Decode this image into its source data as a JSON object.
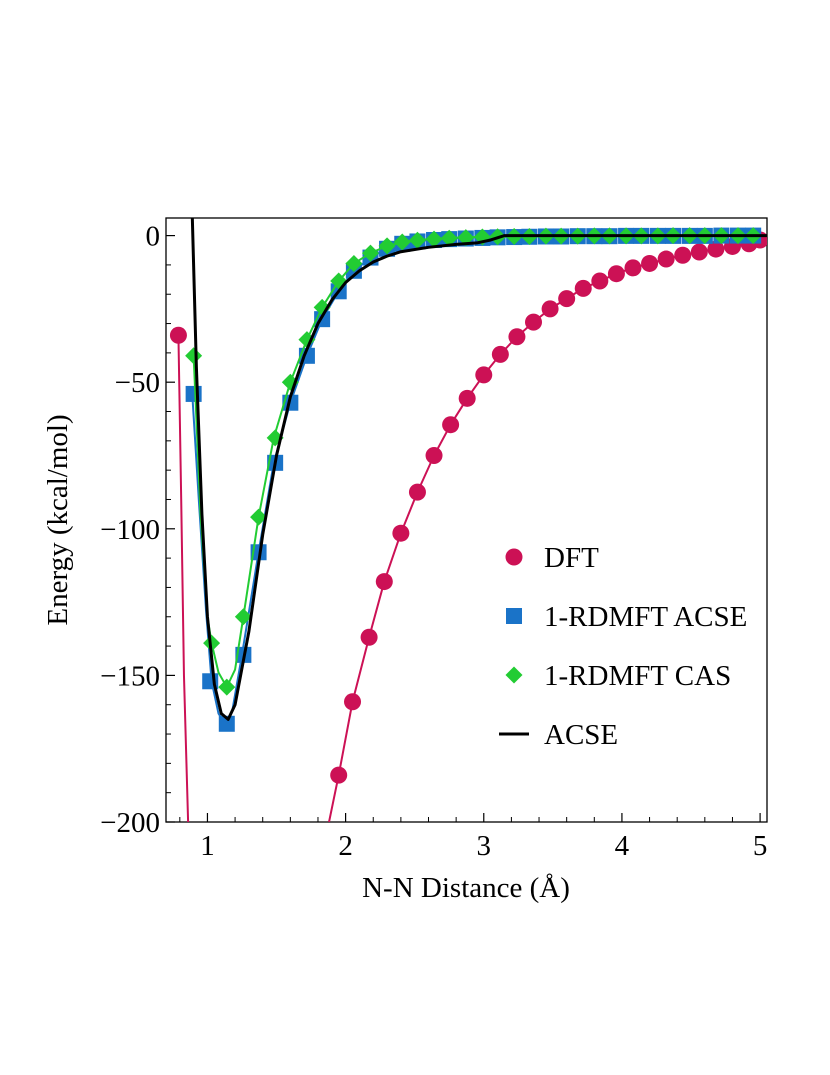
{
  "chart_data": {
    "type": "line",
    "title": "",
    "xlabel": "N-N Distance (Å)",
    "ylabel": "Energy (kcal/mol)",
    "xlim": [
      0.7,
      5.05
    ],
    "ylim": [
      -200,
      6
    ],
    "x_ticks": [
      1,
      2,
      3,
      4,
      5
    ],
    "y_ticks": [
      0,
      -50,
      -100,
      -150,
      -200
    ],
    "x_tick_labels": [
      "1",
      "2",
      "3",
      "4",
      "5"
    ],
    "y_tick_labels": [
      "0",
      "−50",
      "−100",
      "−150",
      "−200"
    ],
    "grid": false,
    "legend_position": "lower-right",
    "series": [
      {
        "name": "DFT",
        "color": "#cc1155",
        "marker": "circle",
        "line": [
          [
            0.79,
            -34
          ],
          [
            0.81,
            -90
          ],
          [
            0.83,
            -150
          ],
          [
            0.86,
            -200
          ]
        ],
        "curve": [
          [
            1.88,
            -200
          ],
          [
            1.95,
            -184
          ],
          [
            2.05,
            -159
          ],
          [
            2.17,
            -137
          ],
          [
            2.28,
            -118
          ],
          [
            2.4,
            -101.5
          ],
          [
            2.52,
            -87.5
          ],
          [
            2.64,
            -75
          ],
          [
            2.76,
            -64.5
          ],
          [
            2.88,
            -55.5
          ],
          [
            3.0,
            -47.5
          ],
          [
            3.12,
            -40.5
          ],
          [
            3.24,
            -34.5
          ],
          [
            3.36,
            -29.5
          ],
          [
            3.48,
            -25
          ],
          [
            3.6,
            -21.5
          ],
          [
            3.72,
            -18
          ],
          [
            3.84,
            -15.5
          ],
          [
            3.96,
            -13
          ],
          [
            4.08,
            -11
          ],
          [
            4.2,
            -9.5
          ],
          [
            4.32,
            -8
          ],
          [
            4.44,
            -6.7
          ],
          [
            4.56,
            -5.6
          ],
          [
            4.68,
            -4.6
          ],
          [
            4.8,
            -3.7
          ],
          [
            4.92,
            -2.8
          ],
          [
            5.04,
            -2
          ]
        ],
        "points": [
          [
            0.79,
            -34
          ],
          [
            1.95,
            -184
          ],
          [
            2.05,
            -159
          ],
          [
            2.17,
            -137
          ],
          [
            2.28,
            -118
          ],
          [
            2.4,
            -101.5
          ],
          [
            2.52,
            -87.5
          ],
          [
            2.64,
            -75
          ],
          [
            2.76,
            -64.5
          ],
          [
            2.88,
            -55.5
          ],
          [
            3.0,
            -47.5
          ],
          [
            3.12,
            -40.5
          ],
          [
            3.24,
            -34.5
          ],
          [
            3.36,
            -29.5
          ],
          [
            3.48,
            -25
          ],
          [
            3.6,
            -21.5
          ],
          [
            3.72,
            -18
          ],
          [
            3.84,
            -15.5
          ],
          [
            3.96,
            -13
          ],
          [
            4.08,
            -11
          ],
          [
            4.2,
            -9.5
          ],
          [
            4.32,
            -8
          ],
          [
            4.44,
            -6.7
          ],
          [
            4.56,
            -5.6
          ],
          [
            4.68,
            -4.6
          ],
          [
            4.8,
            -3.7
          ],
          [
            4.92,
            -2.8
          ],
          [
            5.0,
            -1.5
          ]
        ]
      },
      {
        "name": "1-RDMFT ACSE",
        "color": "#1a73c8",
        "marker": "square",
        "curve": [
          [
            0.89,
            -54
          ],
          [
            0.94,
            -92
          ],
          [
            0.99,
            -128
          ],
          [
            1.03,
            -152
          ],
          [
            1.08,
            -163
          ],
          [
            1.13,
            -166.5
          ],
          [
            1.18,
            -162
          ],
          [
            1.25,
            -143
          ],
          [
            1.37,
            -108
          ],
          [
            1.48,
            -77.5
          ],
          [
            1.6,
            -57
          ],
          [
            1.72,
            -41
          ],
          [
            1.83,
            -28.5
          ],
          [
            1.95,
            -19
          ],
          [
            2.06,
            -12
          ],
          [
            2.18,
            -7.5
          ],
          [
            2.3,
            -4.5
          ],
          [
            2.42,
            -2.8
          ],
          [
            2.6,
            -1.5
          ],
          [
            2.8,
            -0.9
          ],
          [
            3.0,
            -0.5
          ],
          [
            3.5,
            -0.2
          ],
          [
            4.0,
            -0.1
          ],
          [
            5.0,
            0
          ]
        ],
        "points": [
          [
            0.9,
            -54
          ],
          [
            1.02,
            -152
          ],
          [
            1.14,
            -166.5
          ],
          [
            1.26,
            -143
          ],
          [
            1.37,
            -108
          ],
          [
            1.49,
            -77.5
          ],
          [
            1.6,
            -57
          ],
          [
            1.72,
            -41
          ],
          [
            1.83,
            -28.5
          ],
          [
            1.95,
            -19
          ],
          [
            2.06,
            -12
          ],
          [
            2.18,
            -7.5
          ],
          [
            2.3,
            -4.5
          ],
          [
            2.41,
            -2.8
          ],
          [
            2.52,
            -2
          ],
          [
            2.64,
            -1.5
          ],
          [
            2.75,
            -1.2
          ],
          [
            2.87,
            -1
          ],
          [
            2.99,
            -0.8
          ],
          [
            3.1,
            -0.6
          ],
          [
            3.22,
            -0.5
          ],
          [
            3.33,
            -0.4
          ],
          [
            3.45,
            -0.3
          ],
          [
            3.56,
            -0.3
          ],
          [
            3.68,
            -0.2
          ],
          [
            3.8,
            -0.2
          ],
          [
            3.91,
            -0.2
          ],
          [
            4.03,
            -0.1
          ],
          [
            4.14,
            -0.1
          ],
          [
            4.26,
            -0.1
          ],
          [
            4.37,
            -0.1
          ],
          [
            4.49,
            -0.1
          ],
          [
            4.6,
            -0.1
          ],
          [
            4.72,
            0
          ],
          [
            4.84,
            0
          ],
          [
            4.95,
            0
          ]
        ]
      },
      {
        "name": "1-RDMFT CAS",
        "color": "#22cc33",
        "marker": "diamond",
        "curve": [
          [
            0.9,
            -41
          ],
          [
            0.95,
            -95
          ],
          [
            1.0,
            -130
          ],
          [
            1.03,
            -139
          ],
          [
            1.08,
            -149
          ],
          [
            1.14,
            -154
          ],
          [
            1.2,
            -148
          ],
          [
            1.26,
            -130
          ],
          [
            1.37,
            -96
          ],
          [
            1.48,
            -69
          ],
          [
            1.6,
            -50
          ],
          [
            1.72,
            -35.5
          ],
          [
            1.83,
            -24.5
          ],
          [
            1.95,
            -15.5
          ],
          [
            2.06,
            -9.5
          ],
          [
            2.18,
            -6
          ],
          [
            2.3,
            -3.5
          ],
          [
            2.42,
            -2.2
          ],
          [
            2.6,
            -1.2
          ],
          [
            2.8,
            -0.7
          ],
          [
            3.0,
            -0.4
          ],
          [
            3.5,
            -0.2
          ],
          [
            4.0,
            -0.1
          ],
          [
            5.0,
            0
          ]
        ],
        "points": [
          [
            0.9,
            -41
          ],
          [
            1.03,
            -139
          ],
          [
            1.14,
            -154
          ],
          [
            1.26,
            -130
          ],
          [
            1.37,
            -96
          ],
          [
            1.49,
            -69
          ],
          [
            1.6,
            -50
          ],
          [
            1.72,
            -35.5
          ],
          [
            1.83,
            -24.5
          ],
          [
            1.95,
            -15.5
          ],
          [
            2.06,
            -9.5
          ],
          [
            2.18,
            -6
          ],
          [
            2.3,
            -3.5
          ],
          [
            2.41,
            -2.2
          ],
          [
            2.52,
            -1.6
          ],
          [
            2.64,
            -1.2
          ],
          [
            2.75,
            -0.9
          ],
          [
            2.87,
            -0.7
          ],
          [
            2.99,
            -0.5
          ],
          [
            3.1,
            -0.4
          ],
          [
            3.22,
            -0.3
          ],
          [
            3.33,
            -0.3
          ],
          [
            3.45,
            -0.2
          ],
          [
            3.56,
            -0.2
          ],
          [
            3.68,
            -0.2
          ],
          [
            3.8,
            -0.1
          ],
          [
            3.91,
            -0.1
          ],
          [
            4.03,
            -0.1
          ],
          [
            4.14,
            -0.1
          ],
          [
            4.26,
            -0.1
          ],
          [
            4.37,
            0
          ],
          [
            4.49,
            0
          ],
          [
            4.6,
            0
          ],
          [
            4.72,
            0
          ],
          [
            4.84,
            0
          ],
          [
            4.95,
            0
          ]
        ]
      },
      {
        "name": "ACSE",
        "color": "#000000",
        "marker": "line",
        "curve": [
          [
            0.89,
            7
          ],
          [
            0.92,
            -45
          ],
          [
            0.96,
            -95
          ],
          [
            1.0,
            -130
          ],
          [
            1.05,
            -153
          ],
          [
            1.1,
            -163
          ],
          [
            1.15,
            -165
          ],
          [
            1.2,
            -160
          ],
          [
            1.3,
            -135
          ],
          [
            1.4,
            -102
          ],
          [
            1.5,
            -75
          ],
          [
            1.6,
            -55
          ],
          [
            1.7,
            -41
          ],
          [
            1.8,
            -30
          ],
          [
            1.9,
            -22
          ],
          [
            2.0,
            -16
          ],
          [
            2.1,
            -12
          ],
          [
            2.2,
            -9
          ],
          [
            2.3,
            -7
          ],
          [
            2.4,
            -5.5
          ],
          [
            2.6,
            -4
          ],
          [
            2.8,
            -3
          ],
          [
            2.95,
            -2.5
          ],
          [
            3.05,
            -1.5
          ],
          [
            3.15,
            0
          ],
          [
            3.4,
            0
          ],
          [
            4.0,
            0
          ],
          [
            5.05,
            0
          ]
        ]
      }
    ]
  }
}
